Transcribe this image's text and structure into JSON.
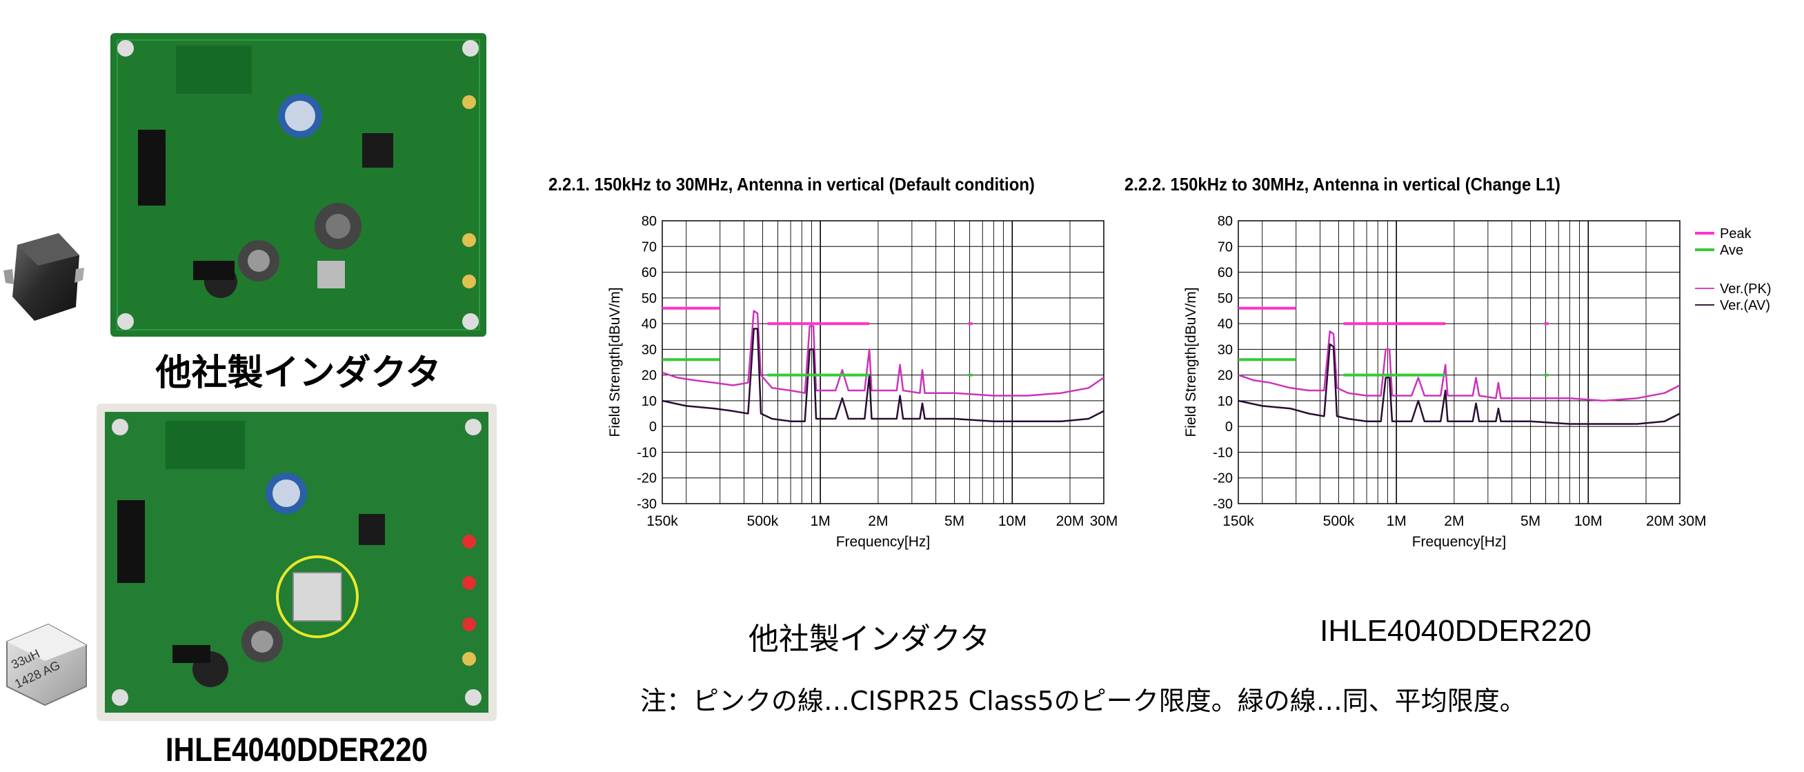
{
  "left_panel": {
    "board1_caption": "他社製インダクタ",
    "board2_caption": "IHLE4040DDER220",
    "inductor2_marking_line1": "33uH",
    "inductor2_marking_line2": "1428 AG"
  },
  "chart_captions": [
    "他社製インダクタ",
    "IHLE4040DDER220"
  ],
  "note": "注：ピンクの線…CISPR25 Class5のピーク限度。緑の線…同、平均限度。",
  "legend": {
    "items": [
      {
        "label": "Peak",
        "color": "#ff33cc"
      },
      {
        "label": "Ave",
        "color": "#33cc33"
      },
      {
        "label": "Ver.(PK)",
        "color": "#e040c8"
      },
      {
        "label": "Ver.(AV)",
        "color": "#3a1a40"
      }
    ]
  },
  "colors": {
    "peak_limit": "#ff33cc",
    "avg_limit": "#33cc33",
    "pk_trace": "#cc33bb",
    "av_trace": "#2a0d33",
    "pcb_green": "#1f7a2e"
  },
  "chart_data": [
    {
      "type": "line",
      "title": "2.2.1. 150kHz to 30MHz, Antenna in vertical (Default condition)",
      "xlabel": "Frequency[Hz]",
      "ylabel": "Field Strength[dBuV/m]",
      "x_scale": "log",
      "xlim": [
        150000,
        30000000
      ],
      "ylim": [
        -30,
        80
      ],
      "yticks": [
        "80",
        "70",
        "60",
        "50",
        "40",
        "30",
        "20",
        "10",
        "0",
        "-10",
        "-20",
        "-30"
      ],
      "xticks": [
        {
          "value": 150000,
          "label": "150k"
        },
        {
          "value": 500000,
          "label": "500k"
        },
        {
          "value": 1000000,
          "label": "1M"
        },
        {
          "value": 2000000,
          "label": "2M"
        },
        {
          "value": 5000000,
          "label": "5M"
        },
        {
          "value": 10000000,
          "label": "10M"
        },
        {
          "value": 20000000,
          "label": "20M"
        },
        {
          "value": 30000000,
          "label": "30M"
        }
      ],
      "grid": true,
      "limit_lines": [
        {
          "name": "Peak",
          "segments": [
            {
              "x1": 150000,
              "x2": 300000,
              "y": 46
            },
            {
              "x1": 530000,
              "x2": 1800000,
              "y": 40
            },
            {
              "x1": 5900000,
              "x2": 6200000,
              "y": 40
            }
          ]
        },
        {
          "name": "Ave",
          "segments": [
            {
              "x1": 150000,
              "x2": 300000,
              "y": 26
            },
            {
              "x1": 530000,
              "x2": 1800000,
              "y": 20
            },
            {
              "x1": 5900000,
              "x2": 6200000,
              "y": 20
            }
          ]
        }
      ],
      "series": [
        {
          "name": "Ver.(PK)",
          "points": [
            [
              150000,
              21
            ],
            [
              180000,
              19
            ],
            [
              220000,
              18
            ],
            [
              280000,
              17
            ],
            [
              350000,
              16
            ],
            [
              420000,
              17
            ],
            [
              450000,
              45
            ],
            [
              470000,
              44
            ],
            [
              490000,
              20
            ],
            [
              560000,
              15
            ],
            [
              700000,
              14
            ],
            [
              830000,
              13
            ],
            [
              880000,
              39
            ],
            [
              920000,
              39
            ],
            [
              950000,
              14
            ],
            [
              1200000,
              14
            ],
            [
              1300000,
              22
            ],
            [
              1400000,
              14
            ],
            [
              1700000,
              14
            ],
            [
              1800000,
              30
            ],
            [
              1850000,
              14
            ],
            [
              2500000,
              14
            ],
            [
              2600000,
              24
            ],
            [
              2700000,
              14
            ],
            [
              3300000,
              13
            ],
            [
              3400000,
              22
            ],
            [
              3500000,
              13
            ],
            [
              5000000,
              13
            ],
            [
              8000000,
              12
            ],
            [
              12000000,
              12
            ],
            [
              18000000,
              13
            ],
            [
              25000000,
              15
            ],
            [
              30000000,
              19
            ]
          ]
        },
        {
          "name": "Ver.(AV)",
          "points": [
            [
              150000,
              10
            ],
            [
              200000,
              8
            ],
            [
              280000,
              7
            ],
            [
              350000,
              6
            ],
            [
              420000,
              5
            ],
            [
              450000,
              38
            ],
            [
              470000,
              38
            ],
            [
              490000,
              5
            ],
            [
              560000,
              3
            ],
            [
              700000,
              2
            ],
            [
              830000,
              2
            ],
            [
              880000,
              30
            ],
            [
              920000,
              30
            ],
            [
              950000,
              3
            ],
            [
              1200000,
              3
            ],
            [
              1300000,
              11
            ],
            [
              1400000,
              3
            ],
            [
              1700000,
              3
            ],
            [
              1800000,
              20
            ],
            [
              1850000,
              3
            ],
            [
              2500000,
              3
            ],
            [
              2600000,
              12
            ],
            [
              2700000,
              3
            ],
            [
              3300000,
              3
            ],
            [
              3400000,
              9
            ],
            [
              3500000,
              3
            ],
            [
              5000000,
              3
            ],
            [
              8000000,
              2
            ],
            [
              12000000,
              2
            ],
            [
              18000000,
              2
            ],
            [
              25000000,
              3
            ],
            [
              30000000,
              6
            ]
          ]
        }
      ]
    },
    {
      "type": "line",
      "title": "2.2.2. 150kHz to 30MHz, Antenna in vertical (Change L1)",
      "xlabel": "Frequency[Hz]",
      "ylabel": "Field Strength[dBuV/m]",
      "x_scale": "log",
      "xlim": [
        150000,
        30000000
      ],
      "ylim": [
        -30,
        80
      ],
      "yticks": [
        "80",
        "70",
        "60",
        "50",
        "40",
        "30",
        "20",
        "10",
        "0",
        "-10",
        "-20",
        "-30"
      ],
      "xticks": [
        {
          "value": 150000,
          "label": "150k"
        },
        {
          "value": 500000,
          "label": "500k"
        },
        {
          "value": 1000000,
          "label": "1M"
        },
        {
          "value": 2000000,
          "label": "2M"
        },
        {
          "value": 5000000,
          "label": "5M"
        },
        {
          "value": 10000000,
          "label": "10M"
        },
        {
          "value": 20000000,
          "label": "20M 30M"
        }
      ],
      "grid": true,
      "legend_position": "right",
      "limit_lines": [
        {
          "name": "Peak",
          "segments": [
            {
              "x1": 150000,
              "x2": 300000,
              "y": 46
            },
            {
              "x1": 530000,
              "x2": 1800000,
              "y": 40
            },
            {
              "x1": 5900000,
              "x2": 6200000,
              "y": 40
            }
          ]
        },
        {
          "name": "Ave",
          "segments": [
            {
              "x1": 150000,
              "x2": 300000,
              "y": 26
            },
            {
              "x1": 530000,
              "x2": 1800000,
              "y": 20
            },
            {
              "x1": 5900000,
              "x2": 6200000,
              "y": 20
            }
          ]
        }
      ],
      "series": [
        {
          "name": "Ver.(PK)",
          "points": [
            [
              150000,
              20
            ],
            [
              180000,
              18
            ],
            [
              220000,
              17
            ],
            [
              280000,
              15
            ],
            [
              350000,
              14
            ],
            [
              420000,
              14
            ],
            [
              450000,
              37
            ],
            [
              470000,
              36
            ],
            [
              490000,
              15
            ],
            [
              560000,
              13
            ],
            [
              700000,
              12
            ],
            [
              830000,
              12
            ],
            [
              880000,
              30
            ],
            [
              920000,
              30
            ],
            [
              950000,
              12
            ],
            [
              1200000,
              12
            ],
            [
              1300000,
              19
            ],
            [
              1400000,
              12
            ],
            [
              1700000,
              12
            ],
            [
              1800000,
              24
            ],
            [
              1850000,
              12
            ],
            [
              2500000,
              12
            ],
            [
              2600000,
              19
            ],
            [
              2700000,
              12
            ],
            [
              3300000,
              11
            ],
            [
              3400000,
              17
            ],
            [
              3500000,
              11
            ],
            [
              5000000,
              11
            ],
            [
              8000000,
              11
            ],
            [
              12000000,
              10
            ],
            [
              18000000,
              11
            ],
            [
              25000000,
              13
            ],
            [
              30000000,
              16
            ]
          ]
        },
        {
          "name": "Ver.(AV)",
          "points": [
            [
              150000,
              10
            ],
            [
              200000,
              8
            ],
            [
              280000,
              7
            ],
            [
              350000,
              5
            ],
            [
              420000,
              4
            ],
            [
              450000,
              32
            ],
            [
              470000,
              31
            ],
            [
              490000,
              4
            ],
            [
              560000,
              3
            ],
            [
              700000,
              2
            ],
            [
              830000,
              2
            ],
            [
              880000,
              19
            ],
            [
              920000,
              19
            ],
            [
              950000,
              2
            ],
            [
              1200000,
              2
            ],
            [
              1300000,
              10
            ],
            [
              1400000,
              2
            ],
            [
              1700000,
              2
            ],
            [
              1800000,
              14
            ],
            [
              1850000,
              2
            ],
            [
              2500000,
              2
            ],
            [
              2600000,
              9
            ],
            [
              2700000,
              2
            ],
            [
              3300000,
              2
            ],
            [
              3400000,
              7
            ],
            [
              3500000,
              2
            ],
            [
              5000000,
              2
            ],
            [
              8000000,
              1
            ],
            [
              12000000,
              1
            ],
            [
              18000000,
              1
            ],
            [
              25000000,
              2
            ],
            [
              30000000,
              5
            ]
          ]
        }
      ]
    }
  ]
}
